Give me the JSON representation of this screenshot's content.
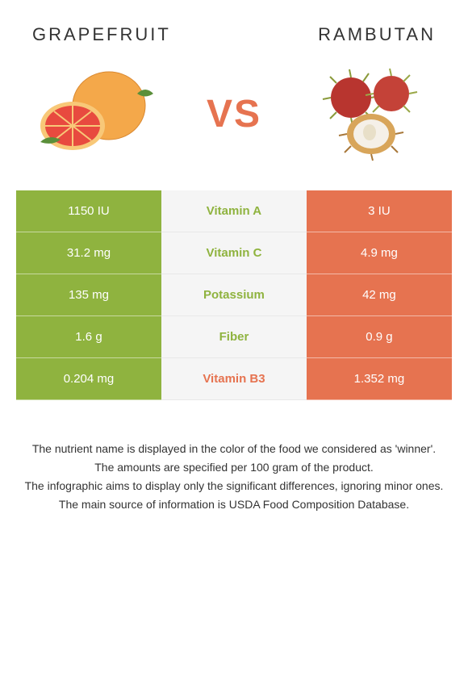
{
  "header": {
    "left_title": "Grapefruit",
    "right_title": "Rambutan",
    "vs_label": "VS"
  },
  "colors": {
    "left_bg": "#8fb33f",
    "right_bg": "#e67350",
    "mid_bg": "#f5f5f5",
    "winner_left_text": "#8fb33f",
    "winner_right_text": "#e67350",
    "vs_color": "#e67350"
  },
  "comparison": {
    "type": "table",
    "rows": [
      {
        "left": "1150 IU",
        "label": "Vitamin A",
        "right": "3 IU",
        "winner": "left"
      },
      {
        "left": "31.2 mg",
        "label": "Vitamin C",
        "right": "4.9 mg",
        "winner": "left"
      },
      {
        "left": "135 mg",
        "label": "Potassium",
        "right": "42 mg",
        "winner": "left"
      },
      {
        "left": "1.6 g",
        "label": "Fiber",
        "right": "0.9 g",
        "winner": "left"
      },
      {
        "left": "0.204 mg",
        "label": "Vitamin B3",
        "right": "1.352 mg",
        "winner": "right"
      }
    ]
  },
  "footer": {
    "line1": "The nutrient name is displayed in the color of the food we considered as 'winner'.",
    "line2": "The amounts are specified per 100 gram of the product.",
    "line3": "The infographic aims to display only the significant differences, ignoring minor ones.",
    "line4": "The main source of information is USDA Food Composition Database."
  }
}
